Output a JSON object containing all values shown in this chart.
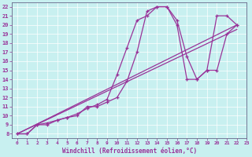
{
  "bg_color": "#c8f0f0",
  "line_color": "#993399",
  "xlabel": "Windchill (Refroidissement éolien,°C)",
  "xlim": [
    -0.5,
    23
  ],
  "ylim": [
    7.5,
    22.5
  ],
  "yticks": [
    8,
    9,
    10,
    11,
    12,
    13,
    14,
    15,
    16,
    17,
    18,
    19,
    20,
    21,
    22
  ],
  "xticks": [
    0,
    1,
    2,
    3,
    4,
    5,
    6,
    7,
    8,
    9,
    10,
    11,
    12,
    13,
    14,
    15,
    16,
    17,
    18,
    19,
    20,
    21,
    22,
    23
  ],
  "series1_x": [
    0,
    1,
    2,
    3,
    4,
    5,
    6,
    7,
    8,
    9,
    10,
    11,
    12,
    13,
    14,
    15,
    16,
    17,
    18,
    19,
    20,
    21,
    22
  ],
  "series1_y": [
    8,
    8,
    9,
    9.2,
    9.5,
    9.8,
    10.2,
    10.8,
    11.2,
    11.8,
    14.5,
    17.5,
    20.5,
    21,
    22,
    22,
    20.5,
    16.5,
    14,
    15,
    21,
    21,
    20
  ],
  "series2_x": [
    0,
    1,
    2,
    3,
    4,
    5,
    6,
    7,
    8,
    9,
    10,
    11,
    12,
    13,
    14,
    15,
    16,
    17,
    18,
    19,
    20,
    21,
    22
  ],
  "series2_y": [
    8,
    8,
    9,
    9,
    9.5,
    9.8,
    10,
    11,
    11,
    11.5,
    12,
    13.8,
    17,
    21.5,
    22,
    22,
    20,
    14,
    14,
    15,
    15,
    19,
    20
  ],
  "series3_x": [
    0,
    22
  ],
  "series3_y": [
    8,
    20
  ],
  "series4_x": [
    0,
    22
  ],
  "series4_y": [
    8,
    19.5
  ]
}
